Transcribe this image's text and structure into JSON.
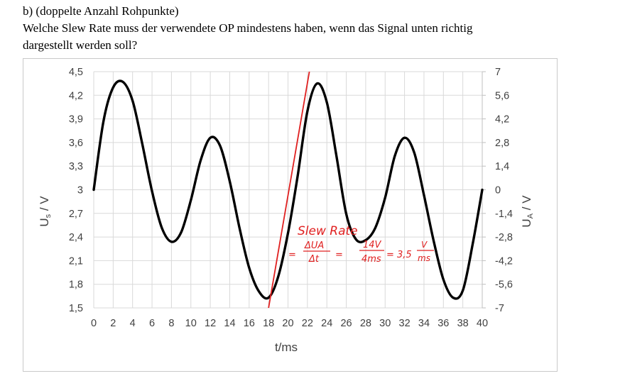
{
  "question": {
    "heading": "b) (doppelte Anzahl Rohpunkte)",
    "line1": "Welche Slew Rate muss der verwendete OP mindestens haben, wenn das Signal unten richtig",
    "line2": "dargestellt werden soll?"
  },
  "chart_data": {
    "type": "line",
    "xlabel": "t/ms",
    "ylabel_left": "US / V",
    "ylabel_right": "UA / V",
    "xlim": [
      0,
      40
    ],
    "ylim_left": [
      1.5,
      4.5
    ],
    "ylim_right": [
      -7,
      7
    ],
    "grid": true,
    "x_ticks": [
      "0",
      "2",
      "4",
      "6",
      "8",
      "10",
      "12",
      "14",
      "16",
      "18",
      "20",
      "22",
      "24",
      "26",
      "28",
      "30",
      "32",
      "34",
      "36",
      "38",
      "40"
    ],
    "y_left_ticks": [
      "1,5",
      "1,8",
      "2,1",
      "2,4",
      "2,7",
      "3",
      "3,3",
      "3,6",
      "3,9",
      "4,2",
      "4,5"
    ],
    "y_right_ticks": [
      "-7",
      "-5,6",
      "-4,2",
      "-2,8",
      "-1,4",
      "0",
      "1,4",
      "2,8",
      "4,2",
      "5,6",
      "7"
    ],
    "series": [
      {
        "color": "#000000",
        "x": [
          0,
          1,
          2,
          3,
          4,
          5,
          6,
          7,
          8,
          9,
          10,
          11,
          12,
          13,
          14,
          15,
          16,
          17,
          18,
          19,
          20,
          21,
          22,
          23,
          24,
          25,
          26,
          27,
          28,
          29,
          30,
          31,
          32,
          33,
          34,
          35,
          36,
          37,
          38,
          39,
          40
        ],
        "y": [
          3.0,
          3.87,
          4.3,
          4.37,
          4.13,
          3.58,
          2.98,
          2.52,
          2.34,
          2.46,
          2.87,
          3.37,
          3.66,
          3.56,
          3.11,
          2.52,
          2.01,
          1.71,
          1.63,
          1.9,
          2.45,
          3.18,
          4.0,
          4.35,
          4.11,
          3.42,
          2.69,
          2.37,
          2.36,
          2.52,
          2.9,
          3.43,
          3.66,
          3.47,
          2.93,
          2.35,
          1.86,
          1.63,
          1.72,
          2.3,
          3.0
        ]
      }
    ],
    "annotation": {
      "color": "#e02020",
      "tangent": {
        "x": [
          18,
          22.2
        ],
        "y": [
          1.5,
          4.5
        ]
      },
      "text_line1": "Slew Rate",
      "text_line2": "= ΔUA/Δt = 14V/4ms = 3,5 V/ms"
    }
  }
}
